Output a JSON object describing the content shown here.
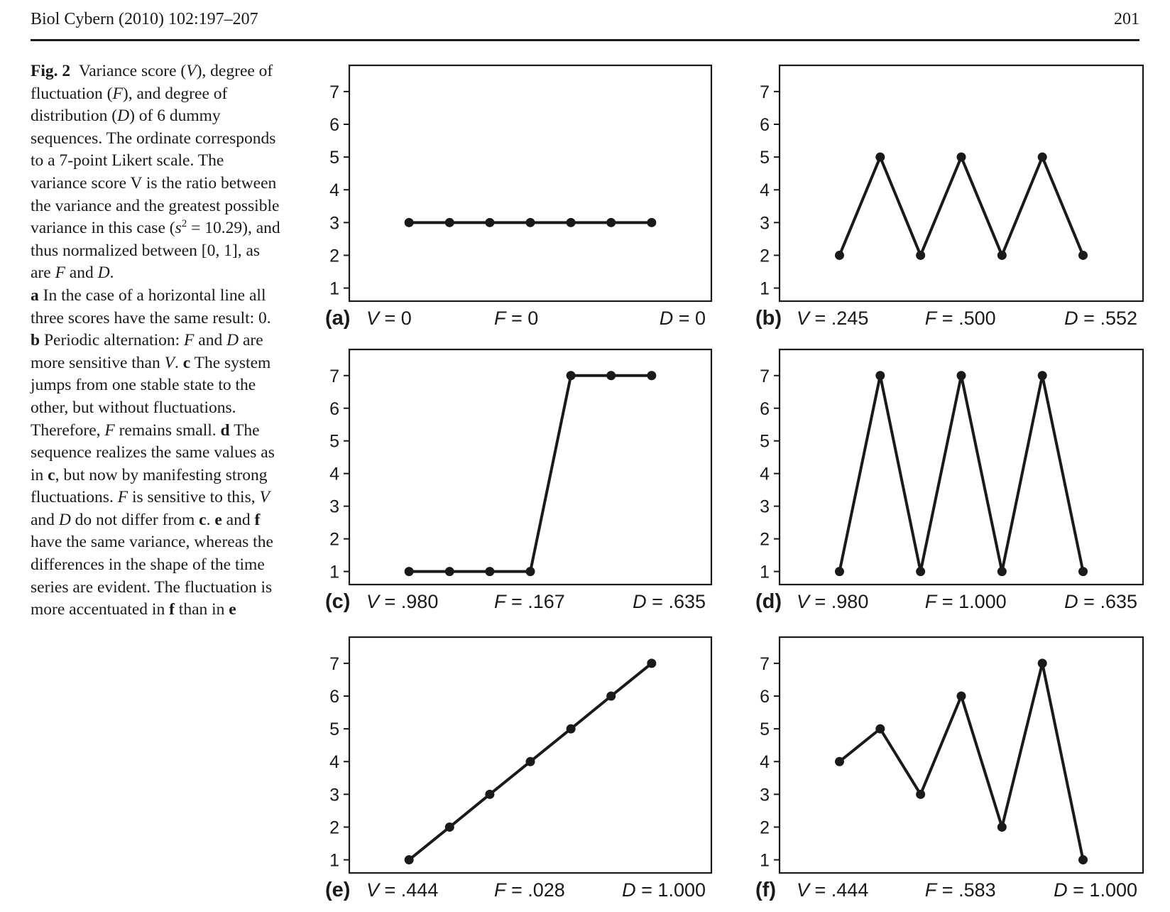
{
  "header": {
    "journal": "Biol Cybern (2010) 102:197–207",
    "page_number": "201"
  },
  "caption": {
    "label": "Fig. 2",
    "t1": "Variance score (",
    "t1v": "V",
    "t2": "), degree of fluctuation (",
    "t2f": "F",
    "t3": "), and degree of distribution (",
    "t3d": "D",
    "t4": ") of 6 dummy sequences. The ordinate corresponds to a 7-point Likert scale. The variance score V is the ratio between the variance and the greatest possible variance in this case (",
    "s": "s",
    "sup": "2",
    "t5": " = 10.29), and thus normalized between [0, 1], as are ",
    "t5f": "F",
    "t6": " and ",
    "t6d": "D",
    "t7": ".",
    "a": "a",
    "t8": " In the case of a horizontal line all three scores have the same result: 0. ",
    "b": "b",
    "t9": " Periodic alternation: ",
    "t9f": "F",
    "t10": " and ",
    "t10d": "D",
    "t11": " are more sensitive than ",
    "t11v": "V",
    "t12": ". ",
    "c": "c",
    "t13": " The system jumps from one stable state to the other, but without fluctuations. Therefore, ",
    "t13f": "F",
    "t14": " remains small. ",
    "d": "d",
    "t15": " The sequence realizes the same values as in ",
    "c2": "c",
    "t16": ", but now by manifesting strong fluctuations. ",
    "t16f": "F",
    "t17": " is sensitive to this, ",
    "t17v": "V",
    "t18": " and ",
    "t18d": "D",
    "t19": " do not differ from ",
    "c3": "c",
    "t20": ". ",
    "e": "e",
    "t21": " and ",
    "f": "f",
    "t22": " have the same variance, whereas the differences in the shape of the time series are evident. The fluctuation is more accentuated in ",
    "f2": "f",
    "t23": " than in ",
    "e2": "e"
  },
  "colors": {
    "ink": "#1a1a1a",
    "background": "#ffffff"
  },
  "chart_data": [
    {
      "type": "line",
      "panel": "(a)",
      "x": [
        1,
        2,
        3,
        4,
        5,
        6,
        7
      ],
      "y": [
        3,
        3,
        3,
        3,
        3,
        3,
        3
      ],
      "ylim": [
        0.6,
        7.8
      ],
      "yticks": [
        1,
        2,
        3,
        4,
        5,
        6,
        7
      ],
      "annotations": [
        {
          "var": "V",
          "eq": " = 0"
        },
        {
          "var": "F",
          "eq": " = 0"
        },
        {
          "var": "D",
          "eq": " = 0"
        }
      ]
    },
    {
      "type": "line",
      "panel": "(b)",
      "x": [
        1,
        2,
        3,
        4,
        5,
        6,
        7
      ],
      "y": [
        2,
        5,
        2,
        5,
        2,
        5,
        2
      ],
      "ylim": [
        0.6,
        7.8
      ],
      "yticks": [
        1,
        2,
        3,
        4,
        5,
        6,
        7
      ],
      "annotations": [
        {
          "var": "V",
          "eq": " = .245"
        },
        {
          "var": "F",
          "eq": " = .500"
        },
        {
          "var": "D",
          "eq": " = .552"
        }
      ]
    },
    {
      "type": "line",
      "panel": "(c)",
      "x": [
        1,
        2,
        3,
        4,
        5,
        6,
        7
      ],
      "y": [
        1,
        1,
        1,
        1,
        7,
        7,
        7
      ],
      "ylim": [
        0.6,
        7.8
      ],
      "yticks": [
        1,
        2,
        3,
        4,
        5,
        6,
        7
      ],
      "annotations": [
        {
          "var": "V",
          "eq": " = .980"
        },
        {
          "var": "F",
          "eq": " = .167"
        },
        {
          "var": "D",
          "eq": " = .635"
        }
      ]
    },
    {
      "type": "line",
      "panel": "(d)",
      "x": [
        1,
        2,
        3,
        4,
        5,
        6,
        7
      ],
      "y": [
        1,
        7,
        1,
        7,
        1,
        7,
        1
      ],
      "ylim": [
        0.6,
        7.8
      ],
      "yticks": [
        1,
        2,
        3,
        4,
        5,
        6,
        7
      ],
      "annotations": [
        {
          "var": "V",
          "eq": " = .980"
        },
        {
          "var": "F",
          "eq": " = 1.000"
        },
        {
          "var": "D",
          "eq": " = .635"
        }
      ]
    },
    {
      "type": "line",
      "panel": "(e)",
      "x": [
        1,
        2,
        3,
        4,
        5,
        6,
        7
      ],
      "y": [
        1,
        2,
        3,
        4,
        5,
        6,
        7
      ],
      "ylim": [
        0.6,
        7.8
      ],
      "yticks": [
        1,
        2,
        3,
        4,
        5,
        6,
        7
      ],
      "annotations": [
        {
          "var": "V",
          "eq": " = .444"
        },
        {
          "var": "F",
          "eq": " = .028"
        },
        {
          "var": "D",
          "eq": " = 1.000"
        }
      ]
    },
    {
      "type": "line",
      "panel": "(f)",
      "x": [
        1,
        2,
        3,
        4,
        5,
        6,
        7
      ],
      "y": [
        4,
        5,
        3,
        6,
        2,
        7,
        1
      ],
      "ylim": [
        0.6,
        7.8
      ],
      "yticks": [
        1,
        2,
        3,
        4,
        5,
        6,
        7
      ],
      "annotations": [
        {
          "var": "V",
          "eq": " = .444"
        },
        {
          "var": "F",
          "eq": " = .583"
        },
        {
          "var": "D",
          "eq": " = 1.000"
        }
      ]
    }
  ]
}
